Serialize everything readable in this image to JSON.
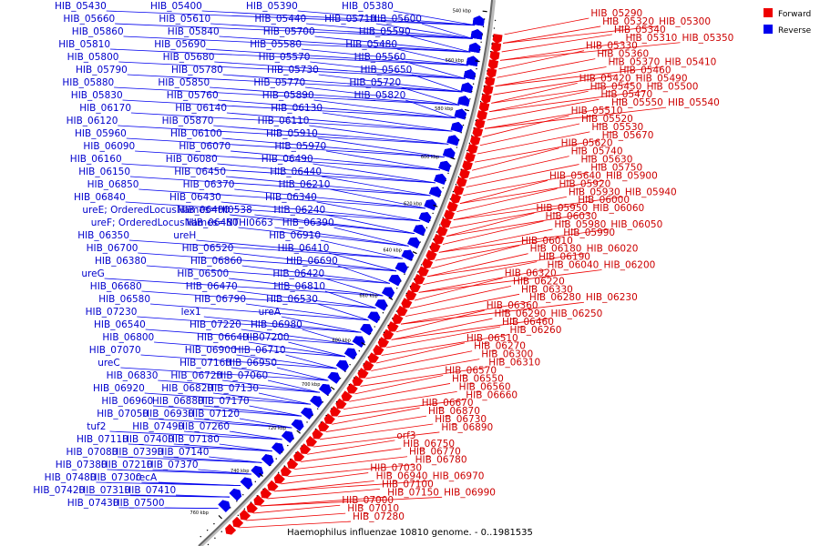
{
  "caption": "Haemophilus influenzae 10810 genome. - 0..1981535",
  "legend": [
    {
      "label": "Forward",
      "color": "#ee0000"
    },
    {
      "label": "Reverse",
      "color": "#0000ee"
    }
  ],
  "ticks": [
    "540 kbp",
    "560 kbp",
    "580 kbp",
    "600 kbp",
    "620 kbp",
    "640 kbp",
    "660 kbp",
    "680 kbp",
    "700 kbp",
    "720 kbp",
    "740 kbp",
    "760 kbp"
  ],
  "reverse_genes": [
    "HIB_05430",
    "HIB_05400",
    "HIB_05390",
    "HIB_05380",
    "HIB_05660",
    "HIB_05610",
    "HIB_05440",
    "HIB_05710",
    "HIB_05600",
    "HIB_05860",
    "HIB_05840",
    "HIB_05700",
    "HIB_05590",
    "HIB_05810",
    "HIB_05690",
    "HIB_05580",
    "HIB_05480",
    "HIB_05800",
    "HIB_05680",
    "HIB_05570",
    "HIB_05560",
    "HIB_05790",
    "HIB_05780",
    "HIB_05730",
    "HIB_05650",
    "HIB_05880",
    "HIB_05850",
    "HIB_05770",
    "HIB_05720",
    "HIB_05830",
    "HIB_05760",
    "HIB_05890",
    "HIB_05820",
    "HIB_06170",
    "HIB_06140",
    "HIB_06130",
    "HIB_06120",
    "HIB_05870",
    "HIB_06110",
    "HIB_05960",
    "HIB_06100",
    "HIB_05910",
    "HIB_06090",
    "HIB_06070",
    "HIB_05970",
    "HIB_06160",
    "HIB_06080",
    "HIB_06490",
    "HIB_06150",
    "HIB_06450",
    "HIB_06440",
    "HIB_06850",
    "HIB_06370",
    "HIB_06210",
    "HIB_06840",
    "HIB_06430",
    "HIB_06340",
    "ureE; OrderedLocusNames=HI0538",
    "HIB_06400",
    "HIB_06240",
    "ureF; OrderedLocusNames=NTHI0663",
    "HIB_06480",
    "HIB_06390",
    "HIB_06350",
    "ureH",
    "HIB_06910",
    "HIB_06700",
    "HIB_06520",
    "HIB_06410",
    "HIB_06380",
    "HIB_06860",
    "HIB_06690",
    "ureG",
    "HIB_06500",
    "HIB_06420",
    "HIB_06680",
    "HIB_06470",
    "HIB_06810",
    "HIB_06580",
    "HIB_06790",
    "HIB_06530",
    "HIB_07230",
    "lex1",
    "ureA",
    "HIB_06540",
    "HIB_07220",
    "HIB_06980",
    "HIB_06800",
    "HIB_06640",
    "HIB07200",
    "HIB_07070",
    "HIB_06900",
    "HIB_06710",
    "ureC",
    "HIB_07160",
    "HIB_06950",
    "HIB_06830",
    "HIB_06720",
    "HIB_07060",
    "HIB_06920",
    "HIB_06820",
    "HIB_07130",
    "HIB_06960",
    "HIB_06880",
    "HIB_07170",
    "HIB_07050",
    "HIB_06930",
    "HIB_07120",
    "tuf2",
    "HIB_07490",
    "HIB_07260",
    "HIB_07110",
    "HIB_07400",
    "HIB_07180",
    "HIB_07080",
    "HIB_07390",
    "HIB_07140",
    "HIB_07380",
    "HIB_07210",
    "HIB_07370",
    "HIB_07480",
    "HIB_07300",
    "recA",
    "HIB_07420",
    "HIB_07310",
    "HIB_07410",
    "HIB_07430",
    "HIB_07500"
  ],
  "forward_genes": [
    "HIB_05290",
    "HIB_05320",
    "HIB_05300",
    "HIB_05340",
    "HIB_05310",
    "HIB_05350",
    "HIB_05330",
    "HIB_05360",
    "HIB_05370",
    "HIB_05410",
    "HIB_05460",
    "HIB_05420",
    "HIB_05490",
    "HIB_05450",
    "HIB_05500",
    "HIB_05470",
    "HIB_05550",
    "HIB_05540",
    "HIB_05510",
    "HIB_05520",
    "HIB_05530",
    "HIB_05670",
    "HIB_05620",
    "HIB_05740",
    "HIB_05630",
    "HIB_05750",
    "HIB_05640",
    "HIB_05900",
    "HIB_05920",
    "HIB_05930",
    "HIB_05940",
    "HIB_06000",
    "HIB_05950",
    "HIB_06060",
    "HIB_06030",
    "HIB_05980",
    "HIB_06050",
    "HIB_05990",
    "HIB_06010",
    "HIB_06180",
    "HIB_06020",
    "HIB_06190",
    "HIB_06040",
    "HIB_06200",
    "HIB_06320",
    "HIB_06220",
    "HIB_06330",
    "HIB_06280",
    "HIB_06230",
    "HIB_06360",
    "HIB_06290",
    "HIB_06250",
    "HIB_06460",
    "HIB_06260",
    "HIB_06510",
    "HIB_06270",
    "HIB_06300",
    "HIB_06310",
    "HIB_06570",
    "HIB_06550",
    "HIB_06560",
    "HIB_06660",
    "HIB_06670",
    "HIB_06870",
    "HIB_06730",
    "HIB_06890",
    "orf3",
    "HIB_06750",
    "HIB_06770",
    "HIB_06780",
    "HIB_07030",
    "HIB_06940",
    "HIB_06970",
    "HIB_07100",
    "HIB_07150",
    "HIB_06990",
    "HIB_07000",
    "HIB_07010",
    "HIB_07280"
  ]
}
